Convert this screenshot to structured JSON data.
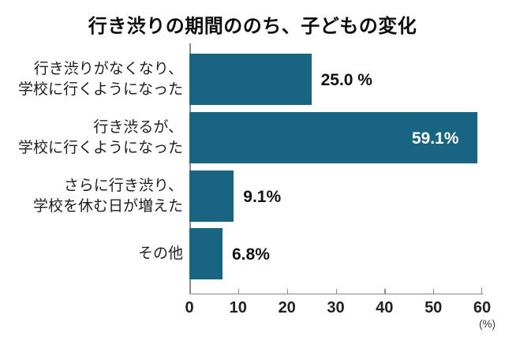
{
  "title": "行き渋りの期間ののち、子どもの変化",
  "colors": {
    "bar": "#176582",
    "axis": "#8a8a8a",
    "label_text": "#1e1e1e",
    "value_outside": "#111111",
    "value_inside": "#ffffff"
  },
  "chart_data": {
    "type": "bar",
    "orientation": "horizontal",
    "title": "行き渋りの期間ののち、子どもの変化",
    "categories": [
      "行き渋りがなくなり、学校に行くようになった",
      "行き渋るが、学校に行くようになった",
      "さらに行き渋り、学校を休む日が増えた",
      "その他"
    ],
    "category_lines": [
      [
        "行き渋りがなくなり、",
        "学校に行くようになった"
      ],
      [
        "行き渋るが、",
        "学校に行くようになった"
      ],
      [
        "さらに行き渋り、",
        "学校を休む日が増えた"
      ],
      [
        "その他"
      ]
    ],
    "values": [
      25.0,
      59.1,
      9.1,
      6.8
    ],
    "value_labels": [
      "25.0 %",
      "59.1%",
      "9.1%",
      "6.8%"
    ],
    "value_label_placement": [
      "outside",
      "inside",
      "outside",
      "outside"
    ],
    "xlim": [
      0,
      60
    ],
    "x_ticks": [
      "0",
      "10",
      "20",
      "30",
      "40",
      "50",
      "60"
    ],
    "x_unit": "(%)",
    "grid": false,
    "legend": "none"
  }
}
